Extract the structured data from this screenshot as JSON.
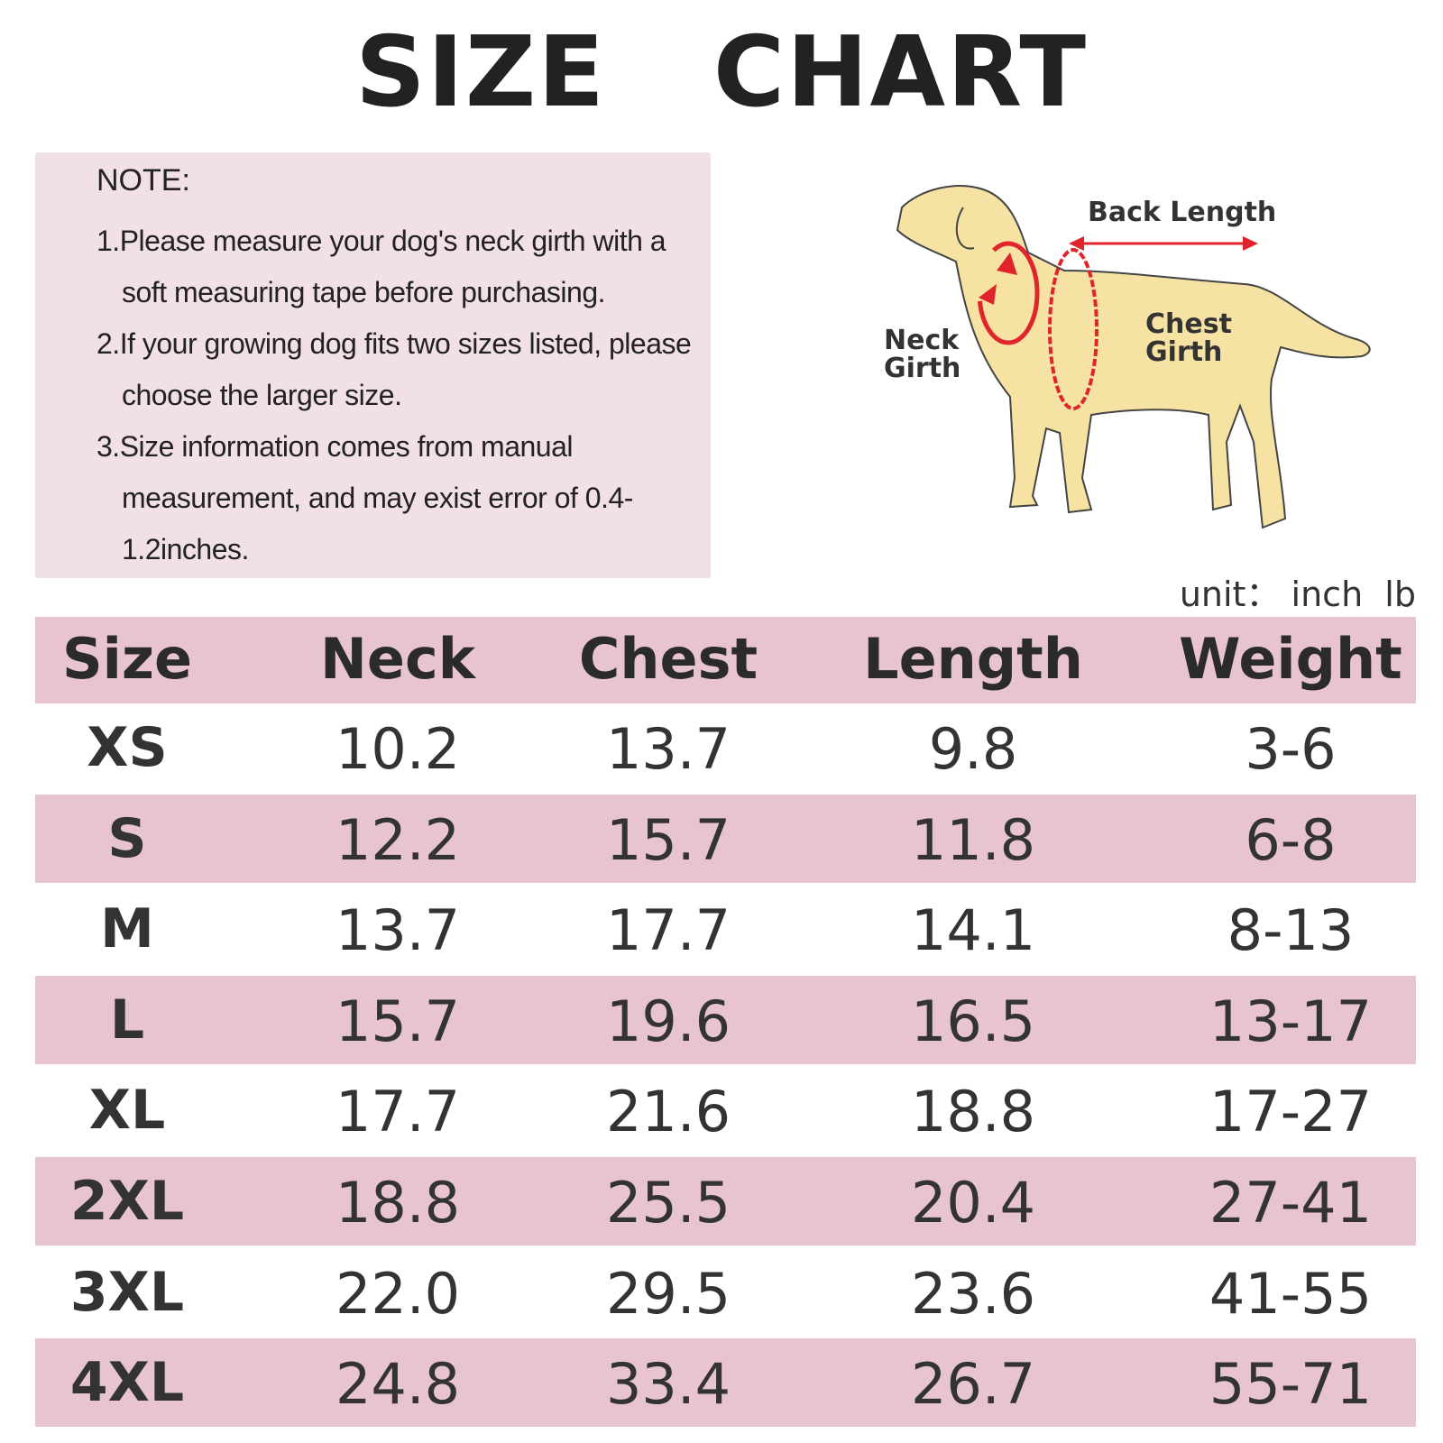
{
  "title": "SIZE   CHART",
  "note": {
    "heading": "NOTE:",
    "items": [
      "1.Please measure your dog's neck girth with a soft measuring tape before purchasing.",
      "2.If your growing dog fits two sizes listed, please choose the larger size.",
      "3.Size information comes from manual measurement, and may exist error of 0.4-1.2inches."
    ]
  },
  "diagram": {
    "back_length": "Back Length",
    "neck_girth": "Neck Girth",
    "chest_girth": "Chest Girth"
  },
  "unit": "unit： inch  lb",
  "table": {
    "header": [
      "Size",
      "Neck",
      "Chest",
      "Length",
      "Weight"
    ],
    "rows": [
      [
        "XS",
        "10.2",
        "13.7",
        "9.8",
        "3-6"
      ],
      [
        "S",
        "12.2",
        "15.7",
        "11.8",
        "6-8"
      ],
      [
        "M",
        "13.7",
        "17.7",
        "14.1",
        "8-13"
      ],
      [
        "L",
        "15.7",
        "19.6",
        "16.5",
        "13-17"
      ],
      [
        "XL",
        "17.7",
        "21.6",
        "18.8",
        "17-27"
      ],
      [
        "2XL",
        "18.8",
        "25.5",
        "20.4",
        "27-41"
      ],
      [
        "3XL",
        "22.0",
        "29.5",
        "23.6",
        "41-55"
      ],
      [
        "4XL",
        "24.8",
        "33.4",
        "26.7",
        "55-71"
      ]
    ]
  }
}
